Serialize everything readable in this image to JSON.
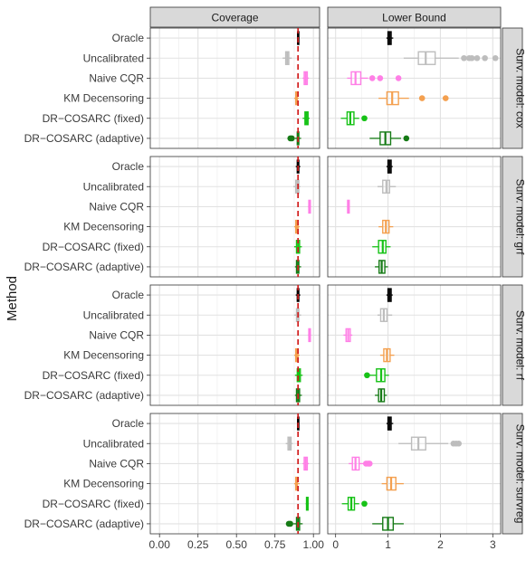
{
  "chart_data": {
    "type": "boxplot",
    "ylabel": "Method",
    "methods": [
      "Oracle",
      "Uncalibrated",
      "Naive CQR",
      "KM Decensoring",
      "DR−COSARC (fixed)",
      "DR−COSARC (adaptive)"
    ],
    "columns": [
      {
        "label": "Coverage",
        "xlim": [
          -0.06,
          1.04
        ],
        "ticks": [
          0.0,
          0.25,
          0.5,
          0.75,
          1.0
        ],
        "tick_labels": [
          "0.00",
          "0.25",
          "0.50",
          "0.75",
          "1.00"
        ],
        "reference_line": 0.9
      },
      {
        "label": "Lower Bound",
        "xlim": [
          -0.15,
          3.15
        ],
        "ticks": [
          0,
          1,
          2,
          3
        ],
        "tick_labels": [
          "0",
          "1",
          "2",
          "3"
        ]
      }
    ],
    "rows": [
      {
        "label": "Surv. model: cox"
      },
      {
        "label": "Surv. model: grf"
      },
      {
        "label": "Surv. model: rf"
      },
      {
        "label": "Surv. model: survreg"
      }
    ],
    "colors": {
      "Oracle": "#000000",
      "Uncalibrated": "#bdbdbd",
      "Naive CQR": "#ff7fe6",
      "KM Decensoring": "#f4a04f",
      "DR−COSARC (fixed)": "#17c217",
      "DR−COSARC (adaptive)": "#157a15"
    },
    "boxes": {
      "cox": {
        "coverage": [
          {
            "q": [
              0.895,
              0.898,
              0.9,
              0.902,
              0.905
            ],
            "out": []
          },
          {
            "q": [
              0.8,
              0.82,
              0.83,
              0.84,
              0.86
            ],
            "out": []
          },
          {
            "q": [
              0.93,
              0.94,
              0.95,
              0.96,
              0.97
            ],
            "out": []
          },
          {
            "q": [
              0.875,
              0.885,
              0.89,
              0.895,
              0.905
            ],
            "out": []
          },
          {
            "q": [
              0.93,
              0.945,
              0.955,
              0.965,
              0.975
            ],
            "out": []
          },
          {
            "q": [
              0.88,
              0.895,
              0.9,
              0.905,
              0.92
            ],
            "out": [
              0.85,
              0.86
            ]
          }
        ],
        "lower": [
          {
            "q": [
              0.97,
              1.0,
              1.03,
              1.06,
              1.1
            ],
            "out": []
          },
          {
            "q": [
              1.3,
              1.58,
              1.72,
              1.9,
              2.35
            ],
            "out": [
              2.45,
              2.55,
              2.6,
              2.7,
              2.85,
              3.05
            ]
          },
          {
            "q": [
              0.22,
              0.3,
              0.38,
              0.48,
              0.62
            ],
            "out": [
              0.7,
              0.85,
              1.2
            ]
          },
          {
            "q": [
              0.82,
              0.98,
              1.08,
              1.2,
              1.4
            ],
            "out": [
              1.65,
              2.1
            ]
          },
          {
            "q": [
              0.1,
              0.22,
              0.28,
              0.35,
              0.45
            ],
            "out": [
              0.55
            ]
          },
          {
            "q": [
              0.65,
              0.85,
              0.95,
              1.05,
              1.25
            ],
            "out": [
              1.35
            ]
          }
        ]
      },
      "grf": {
        "coverage": [
          {
            "q": [
              0.885,
              0.895,
              0.9,
              0.905,
              0.915
            ],
            "out": []
          },
          {
            "q": [
              0.87,
              0.885,
              0.895,
              0.905,
              0.915
            ],
            "out": []
          },
          {
            "q": [
              0.965,
              0.97,
              0.975,
              0.98,
              0.985
            ],
            "out": []
          },
          {
            "q": [
              0.875,
              0.885,
              0.89,
              0.9,
              0.91
            ],
            "out": []
          },
          {
            "q": [
              0.875,
              0.89,
              0.9,
              0.91,
              0.925
            ],
            "out": []
          },
          {
            "q": [
              0.88,
              0.89,
              0.9,
              0.905,
              0.92
            ],
            "out": []
          }
        ],
        "lower": [
          {
            "q": [
              0.97,
              1.0,
              1.03,
              1.06,
              1.09
            ],
            "out": []
          },
          {
            "q": [
              0.8,
              0.9,
              0.97,
              1.03,
              1.15
            ],
            "out": []
          },
          {
            "q": [
              0.22,
              0.23,
              0.24,
              0.26,
              0.27
            ],
            "out": []
          },
          {
            "q": [
              0.82,
              0.9,
              0.96,
              1.02,
              1.1
            ],
            "out": []
          },
          {
            "q": [
              0.7,
              0.82,
              0.9,
              0.96,
              1.05
            ],
            "out": []
          },
          {
            "q": [
              0.75,
              0.83,
              0.88,
              0.94,
              1.0
            ],
            "out": []
          }
        ]
      },
      "rf": {
        "coverage": [
          {
            "q": [
              0.885,
              0.895,
              0.9,
              0.905,
              0.915
            ],
            "out": []
          },
          {
            "q": [
              0.875,
              0.89,
              0.9,
              0.905,
              0.92
            ],
            "out": []
          },
          {
            "q": [
              0.965,
              0.97,
              0.975,
              0.98,
              0.985
            ],
            "out": []
          },
          {
            "q": [
              0.875,
              0.885,
              0.89,
              0.9,
              0.91
            ],
            "out": []
          },
          {
            "q": [
              0.88,
              0.895,
              0.905,
              0.915,
              0.93
            ],
            "out": []
          },
          {
            "q": [
              0.88,
              0.89,
              0.9,
              0.91,
              0.925
            ],
            "out": []
          }
        ],
        "lower": [
          {
            "q": [
              0.97,
              1.0,
              1.03,
              1.06,
              1.09
            ],
            "out": []
          },
          {
            "q": [
              0.8,
              0.86,
              0.92,
              0.98,
              1.08
            ],
            "out": []
          },
          {
            "q": [
              0.15,
              0.2,
              0.24,
              0.28,
              0.32
            ],
            "out": []
          },
          {
            "q": [
              0.85,
              0.92,
              0.98,
              1.04,
              1.12
            ],
            "out": []
          },
          {
            "q": [
              0.65,
              0.78,
              0.87,
              0.94,
              1.02
            ],
            "out": [
              0.6
            ]
          },
          {
            "q": [
              0.75,
              0.82,
              0.87,
              0.93,
              0.98
            ],
            "out": []
          }
        ]
      },
      "survreg": {
        "coverage": [
          {
            "q": [
              0.895,
              0.898,
              0.9,
              0.902,
              0.905
            ],
            "out": []
          },
          {
            "q": [
              0.82,
              0.835,
              0.845,
              0.855,
              0.865
            ],
            "out": []
          },
          {
            "q": [
              0.93,
              0.94,
              0.95,
              0.96,
              0.97
            ],
            "out": []
          },
          {
            "q": [
              0.875,
              0.885,
              0.89,
              0.895,
              0.91
            ],
            "out": []
          },
          {
            "q": [
              0.95,
              0.955,
              0.96,
              0.965,
              0.97
            ],
            "out": []
          },
          {
            "q": [
              0.87,
              0.89,
              0.9,
              0.91,
              0.93
            ],
            "out": [
              0.84,
              0.85
            ]
          }
        ],
        "lower": [
          {
            "q": [
              0.97,
              1.0,
              1.03,
              1.06,
              1.1
            ],
            "out": []
          },
          {
            "q": [
              1.2,
              1.45,
              1.58,
              1.72,
              2.15
            ],
            "out": [
              2.25,
              2.3,
              2.35
            ]
          },
          {
            "q": [
              0.25,
              0.32,
              0.38,
              0.45,
              0.55
            ],
            "out": [
              0.58,
              0.62,
              0.65
            ]
          },
          {
            "q": [
              0.88,
              0.98,
              1.06,
              1.15,
              1.3
            ],
            "out": []
          },
          {
            "q": [
              0.12,
              0.24,
              0.3,
              0.36,
              0.45
            ],
            "out": [
              0.55
            ]
          },
          {
            "q": [
              0.7,
              0.9,
              1.0,
              1.1,
              1.3
            ],
            "out": []
          }
        ]
      }
    }
  }
}
